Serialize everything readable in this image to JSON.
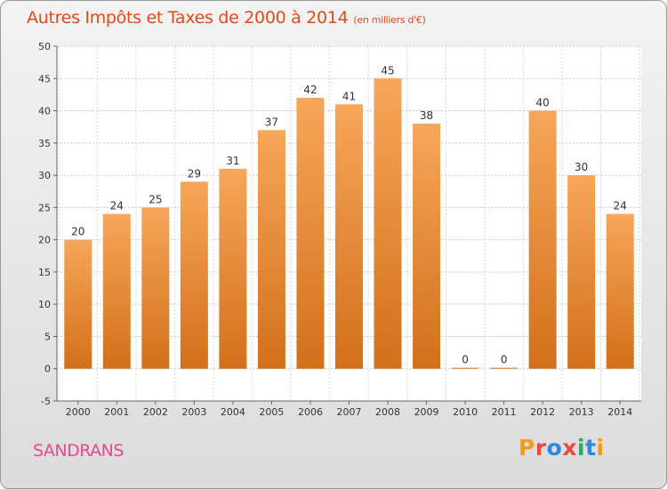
{
  "title": "Autres Impôts et Taxes de 2000 à 2014",
  "subtitle": "(en milliers d'€)",
  "place_name": "SANDRANS",
  "logo_text": "Proxiti",
  "colors": {
    "title": "#e64a19",
    "place": "#e84a8a",
    "bar_top": "#f7a65a",
    "bar_bottom": "#d2701a"
  },
  "chart_data": {
    "type": "bar",
    "title": "Autres Impôts et Taxes de 2000 à 2014",
    "subtitle": "(en milliers d'€)",
    "xlabel": "",
    "ylabel": "",
    "categories": [
      "2000",
      "2001",
      "2002",
      "2003",
      "2004",
      "2005",
      "2006",
      "2007",
      "2008",
      "2009",
      "2010",
      "2011",
      "2012",
      "2013",
      "2014"
    ],
    "values": [
      20,
      24,
      25,
      29,
      31,
      37,
      42,
      41,
      45,
      38,
      0,
      0,
      40,
      30,
      24
    ],
    "value_labels": [
      "20",
      "24",
      "25",
      "29",
      "31",
      "37",
      "42",
      "41",
      "45",
      "38",
      "0",
      "0",
      "40",
      "30",
      "24"
    ],
    "ylim": [
      -5,
      50
    ],
    "yticks": [
      -5,
      0,
      5,
      10,
      15,
      20,
      25,
      30,
      35,
      40,
      45,
      50
    ],
    "grid": true,
    "legend": "none"
  }
}
